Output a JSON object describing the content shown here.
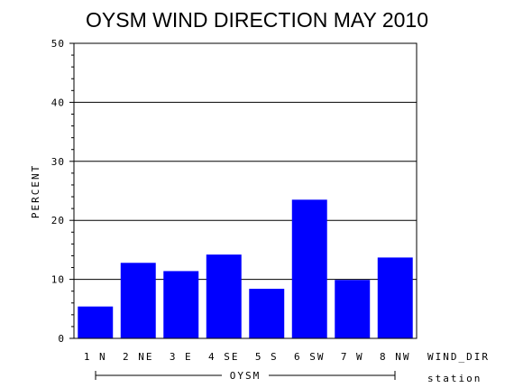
{
  "chart_data": {
    "type": "bar",
    "title": "OYSM WIND DIRECTION MAY 2010",
    "ylabel": "PERCENT",
    "xlabel": "WIND_DIR",
    "group_axis_label": "station",
    "group_label": "OYSM",
    "categories": [
      "1 N",
      "2 NE",
      "3 E",
      "4 SE",
      "5 S",
      "6 SW",
      "7 W",
      "8 NW"
    ],
    "values": [
      5.4,
      12.8,
      11.4,
      14.2,
      8.4,
      23.5,
      9.9,
      13.7
    ],
    "ylim": [
      0,
      50
    ],
    "yticks": [
      "0",
      "10",
      "20",
      "30",
      "40",
      "50"
    ],
    "grid": true,
    "bar_color": "#0000ff"
  }
}
